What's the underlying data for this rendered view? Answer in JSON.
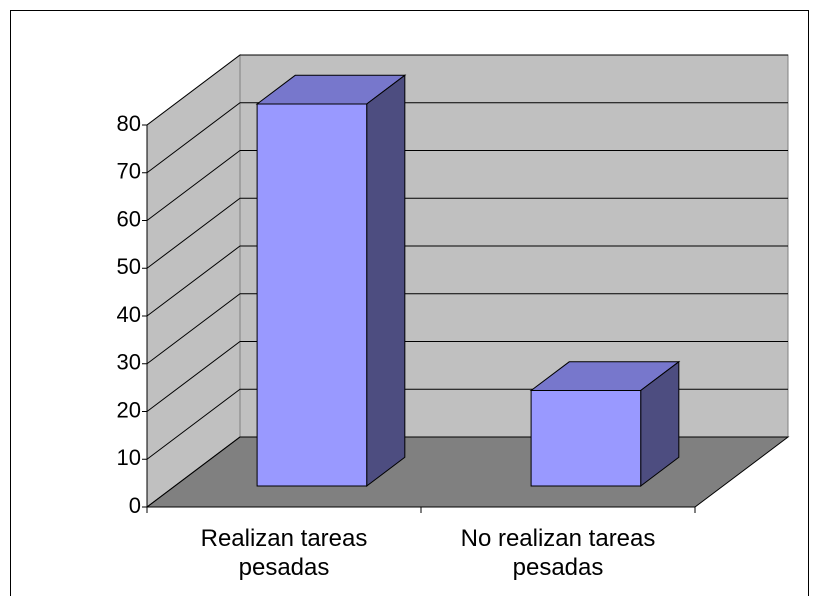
{
  "chart_data": {
    "type": "bar",
    "categories": [
      "Realizan tareas pesadas",
      "No realizan tareas pesadas"
    ],
    "values": [
      80,
      20
    ],
    "color": "#9999ff",
    "ylim": [
      0,
      80
    ],
    "yticks": [
      0,
      10,
      20,
      30,
      40,
      50,
      60,
      70,
      80
    ],
    "grid": true
  }
}
